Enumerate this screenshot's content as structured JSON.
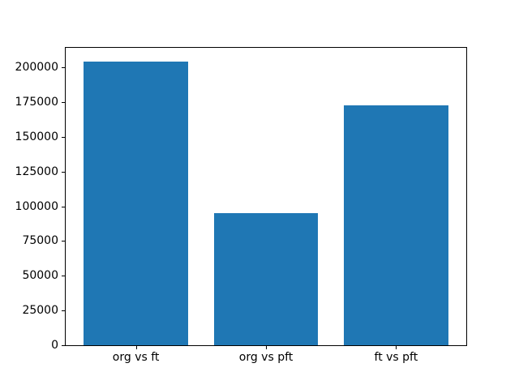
{
  "chart_data": {
    "type": "bar",
    "title": "",
    "xlabel": "",
    "ylabel": "",
    "categories": [
      "org vs ft",
      "org vs pft",
      "ft vs pft"
    ],
    "values": [
      204000,
      95000,
      173000
    ],
    "yticks": [
      0,
      25000,
      50000,
      75000,
      100000,
      125000,
      150000,
      175000,
      200000
    ],
    "ylim": [
      0,
      214200
    ],
    "xlim": [
      -0.54,
      2.54
    ],
    "bar_width": 0.8,
    "bar_positions": [
      0,
      1,
      2
    ],
    "bar_color": "#1f77b4",
    "spine_color": "#000000",
    "background_color": "#ffffff",
    "grid": false,
    "legend": null
  }
}
